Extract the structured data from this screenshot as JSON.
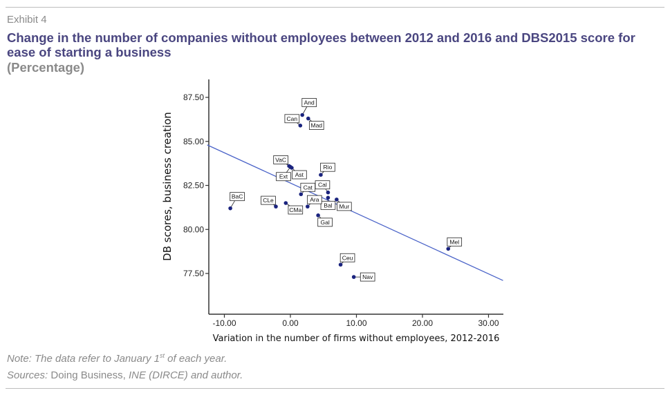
{
  "header": {
    "exhibit": "Exhibit 4",
    "title": "Change in the number of companies without employees between 2012 and 2016 and DBS2015 score for ease of starting a business",
    "subtitle": "(Percentage)"
  },
  "footer": {
    "note_prefix": "Note: The data refer to January 1",
    "note_sup": "st",
    "note_suffix": " of each year.",
    "sources_label": "Sources:",
    "sources_plain": " Doing Business, ",
    "sources_italic": "INE (DIRCE) and author."
  },
  "colors": {
    "title": "#4a4680",
    "muted": "#8a8a8a",
    "point": "#1a237e",
    "fit_line": "#4a63c8"
  },
  "chart_data": {
    "type": "scatter",
    "title": "Change in the number of companies without employees between 2012 and 2016 and DBS2015 score for ease of starting a business",
    "xlabel": "Variation in the number of firms without employees, 2012-2016",
    "ylabel": "DB scores, business creation",
    "xlim": [
      -12.6,
      32.2
    ],
    "ylim": [
      75.2,
      88.5
    ],
    "x_ticks": [
      -10,
      0,
      10,
      20,
      30
    ],
    "x_tick_labels": [
      "-10.00",
      "0.00",
      "10.00",
      "20.00",
      "30.00"
    ],
    "y_ticks": [
      77.5,
      80,
      82.5,
      85,
      87.5
    ],
    "y_tick_labels": [
      "77.50",
      "80.00",
      "82.50",
      "85.00",
      "87.50"
    ],
    "grid": false,
    "points": [
      {
        "label": "And",
        "x": 1.8,
        "y": 86.5
      },
      {
        "label": "Mad",
        "x": 2.7,
        "y": 86.3
      },
      {
        "label": "Can",
        "x": 1.5,
        "y": 85.9
      },
      {
        "label": "VaC",
        "x": -0.2,
        "y": 83.6
      },
      {
        "label": "Ext",
        "x": 0.0,
        "y": 83.55
      },
      {
        "label": "Ast",
        "x": 0.2,
        "y": 83.5
      },
      {
        "label": "Rio",
        "x": 4.6,
        "y": 83.1
      },
      {
        "label": "Cal",
        "x": 5.7,
        "y": 82.1
      },
      {
        "label": "Cat",
        "x": 1.6,
        "y": 82.0
      },
      {
        "label": "Bal",
        "x": 5.7,
        "y": 81.8
      },
      {
        "label": "Mur",
        "x": 7.0,
        "y": 81.7
      },
      {
        "label": "CMa",
        "x": -0.7,
        "y": 81.5
      },
      {
        "label": "Ara",
        "x": 2.6,
        "y": 81.3
      },
      {
        "label": "CLe",
        "x": -2.2,
        "y": 81.3
      },
      {
        "label": "BaC",
        "x": -9.1,
        "y": 81.2
      },
      {
        "label": "Gal",
        "x": 4.2,
        "y": 80.8
      },
      {
        "label": "Mel",
        "x": 23.9,
        "y": 78.9
      },
      {
        "label": "Ceu",
        "x": 7.6,
        "y": 78.0
      },
      {
        "label": "Nav",
        "x": 9.6,
        "y": 77.3
      }
    ],
    "fit_line": {
      "x": [
        -12.6,
        32.2
      ],
      "y": [
        84.8,
        77.1
      ]
    }
  }
}
